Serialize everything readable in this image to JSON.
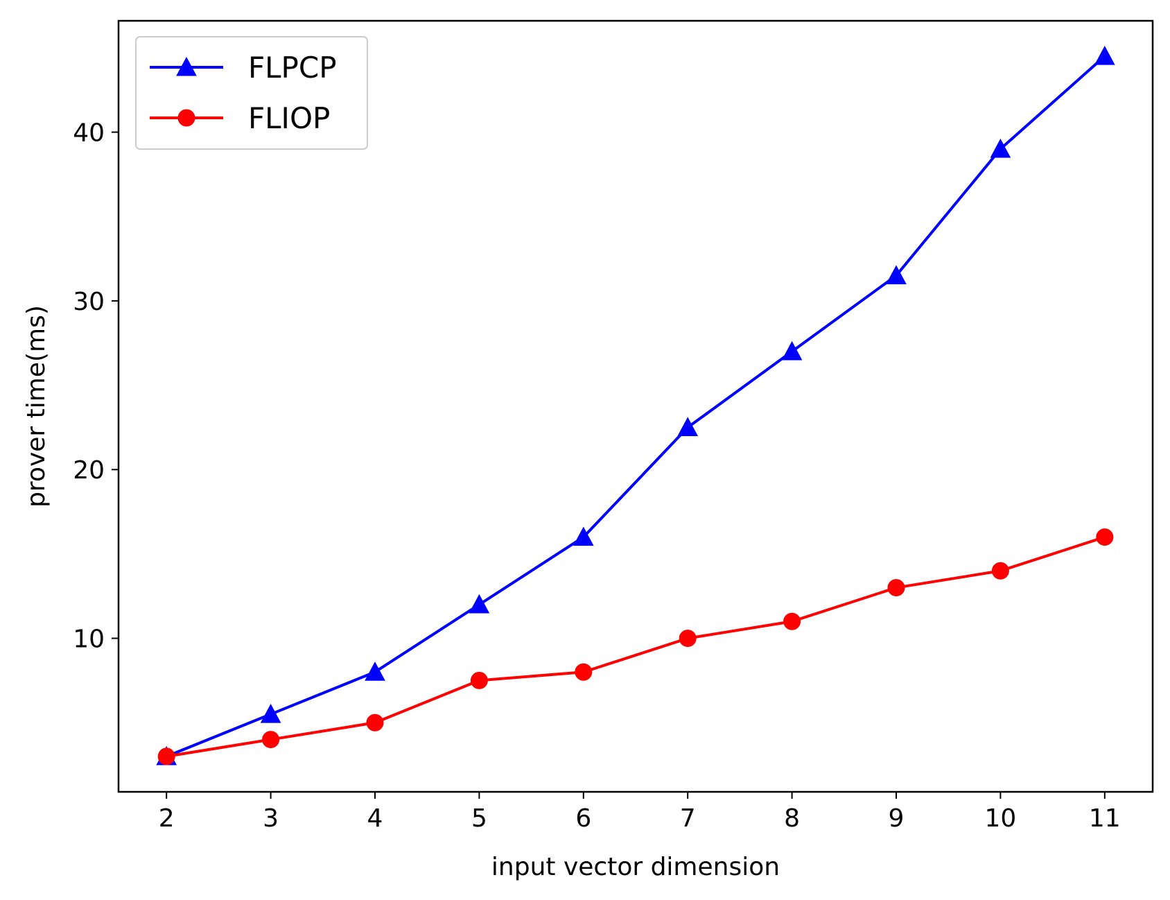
{
  "chart_data": {
    "type": "line",
    "title": "",
    "xlabel": "input vector dimension",
    "ylabel": "prover time(ms)",
    "x": [
      2,
      3,
      4,
      5,
      6,
      7,
      8,
      9,
      10,
      11
    ],
    "xticks": [
      "2",
      "3",
      "4",
      "5",
      "6",
      "7",
      "8",
      "9",
      "10",
      "11"
    ],
    "yticks": [
      10,
      20,
      30,
      40
    ],
    "ytick_labels": [
      "10",
      "20",
      "30",
      "40"
    ],
    "xlim": [
      1.54,
      11.46
    ],
    "ylim": [
      0.9,
      46.6
    ],
    "grid": false,
    "legend_position": "upper left",
    "series": [
      {
        "name": "FLPCP",
        "color": "#0000ff",
        "marker": "triangle",
        "values": [
          3.0,
          5.5,
          8.0,
          12.0,
          16.0,
          22.5,
          27.0,
          31.5,
          39.0,
          44.5
        ]
      },
      {
        "name": "FLIOP",
        "color": "#ff0000",
        "marker": "circle",
        "values": [
          3.0,
          4.0,
          5.0,
          7.5,
          8.0,
          10.0,
          11.0,
          13.0,
          14.0,
          16.0
        ]
      }
    ]
  }
}
